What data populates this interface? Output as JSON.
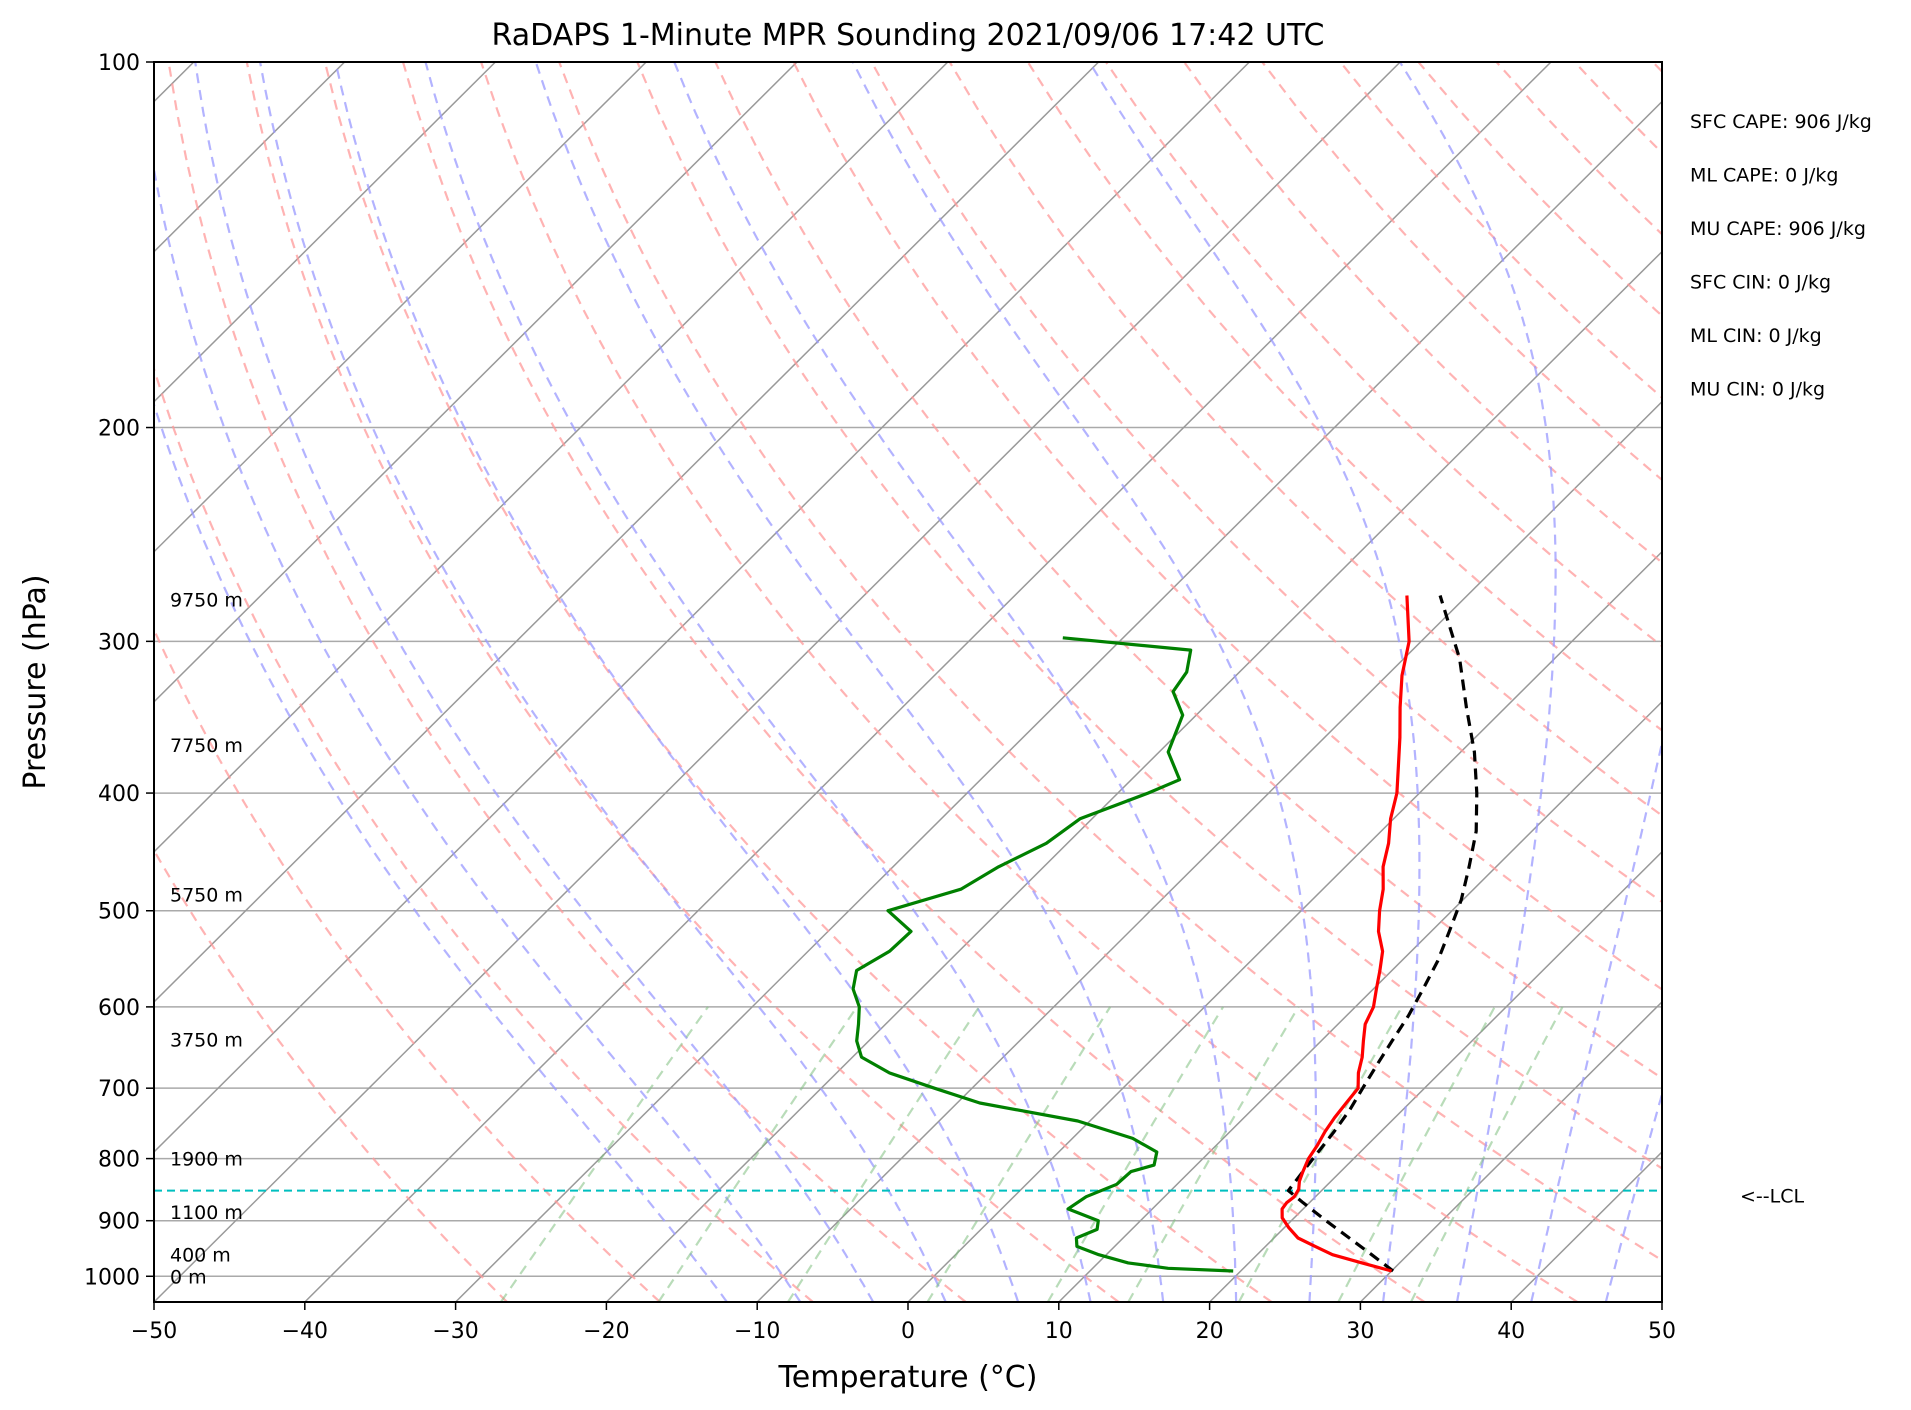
{
  "chart_data": {
    "type": "skew-t",
    "title": "RaDAPS 1-Minute MPR Sounding 2021/09/06 17:42 UTC",
    "xlabel": "Temperature (°C)",
    "ylabel": "Pressure (hPa)",
    "xlim": [
      -50,
      50
    ],
    "ylim": [
      1050,
      100
    ],
    "y_scale": "log",
    "x_ticks": [
      -50,
      -40,
      -30,
      -20,
      -10,
      0,
      10,
      20,
      30,
      40,
      50
    ],
    "y_ticks": [
      100,
      200,
      300,
      400,
      500,
      600,
      700,
      800,
      900,
      1000
    ],
    "grid": true,
    "temperature": {
      "color": "#ff0000",
      "p": [
        990,
        975,
        960,
        945,
        930,
        912,
        895,
        880,
        870,
        860,
        848,
        835,
        820,
        800,
        780,
        760,
        740,
        720,
        700,
        680,
        660,
        640,
        620,
        600,
        580,
        560,
        540,
        520,
        500,
        480,
        460,
        440,
        420,
        400,
        380,
        360,
        340,
        320,
        300,
        275
      ],
      "t": [
        30,
        27.5,
        25,
        23.3,
        21.6,
        20.3,
        19.2,
        18.6,
        18.5,
        18.6,
        18.4,
        17.9,
        17.5,
        17.0,
        16.7,
        16.3,
        16.0,
        15.8,
        15.6,
        14.6,
        13.8,
        12.8,
        11.8,
        11.2,
        10.2,
        9.2,
        8.1,
        6.5,
        5.2,
        4.0,
        2.5,
        1.3,
        -0.2,
        -1.5,
        -3.2,
        -5.0,
        -7.0,
        -9.0,
        -10.8,
        -14.0
      ]
    },
    "dewpoint": {
      "color": "#008000",
      "p": [
        990,
        985,
        975,
        960,
        945,
        930,
        915,
        900,
        880,
        860,
        840,
        820,
        810,
        790,
        770,
        745,
        720,
        700,
        680,
        660,
        640,
        620,
        600,
        580,
        560,
        540,
        520,
        500,
        480,
        460,
        440,
        420,
        400,
        390,
        370,
        345,
        330,
        318,
        305,
        298
      ],
      "td": [
        19.5,
        15.0,
        12.0,
        9.5,
        7.5,
        6.9,
        7.7,
        7.2,
        4.4,
        4.8,
        6.0,
        6.1,
        7.2,
        6.5,
        4.0,
        -0.8,
        -8.5,
        -12.5,
        -16.5,
        -19.4,
        -20.8,
        -21.8,
        -22.9,
        -24.5,
        -25.5,
        -24.6,
        -24.5,
        -27.4,
        -24.0,
        -23.0,
        -21.4,
        -20.8,
        -18.0,
        -16.8,
        -19.4,
        -20.9,
        -23.1,
        -23.5,
        -24.7,
        -34.0
      ]
    },
    "parcel": {
      "color": "#000000",
      "style": "dashed",
      "p": [
        990,
        960,
        930,
        900,
        870,
        850,
        820,
        790,
        760,
        730,
        700,
        670,
        640,
        610,
        580,
        550,
        520,
        490,
        460,
        430,
        400,
        370,
        340,
        310,
        275
      ],
      "t": [
        30.1,
        27.6,
        25.0,
        22.3,
        19.6,
        17.8,
        17.5,
        17.2,
        16.9,
        16.5,
        15.9,
        15.3,
        14.7,
        14.1,
        13.3,
        12.4,
        11.2,
        9.9,
        8.2,
        6.3,
        3.8,
        0.9,
        -2.6,
        -6.3,
        -11.8
      ]
    },
    "lcl": {
      "p": 850,
      "label": "<--LCL",
      "color": "#00bfbf"
    },
    "height_labels": [
      {
        "label": "9750 m",
        "p": 277
      },
      {
        "label": "7750 m",
        "p": 365
      },
      {
        "label": "5750 m",
        "p": 485
      },
      {
        "label": "3750 m",
        "p": 638
      },
      {
        "label": "1900 m",
        "p": 800
      },
      {
        "label": "1100 m",
        "p": 885
      },
      {
        "label": "400 m",
        "p": 960
      },
      {
        "label": "0 m",
        "p": 1000
      }
    ],
    "annotations": [
      "SFC CAPE: 906 J/kg",
      "ML CAPE: 0 J/kg",
      "MU CAPE: 906 J/kg",
      "SFC CIN: 0 J/kg",
      "ML CIN: 0 J/kg",
      "MU CIN: 0 J/kg"
    ],
    "background_lines": {
      "isotherm_color": "#999999",
      "dry_adiabat_color": "#ff9999",
      "moist_adiabat_color": "#9999ff",
      "mixing_ratio_color": "#80c080"
    }
  }
}
